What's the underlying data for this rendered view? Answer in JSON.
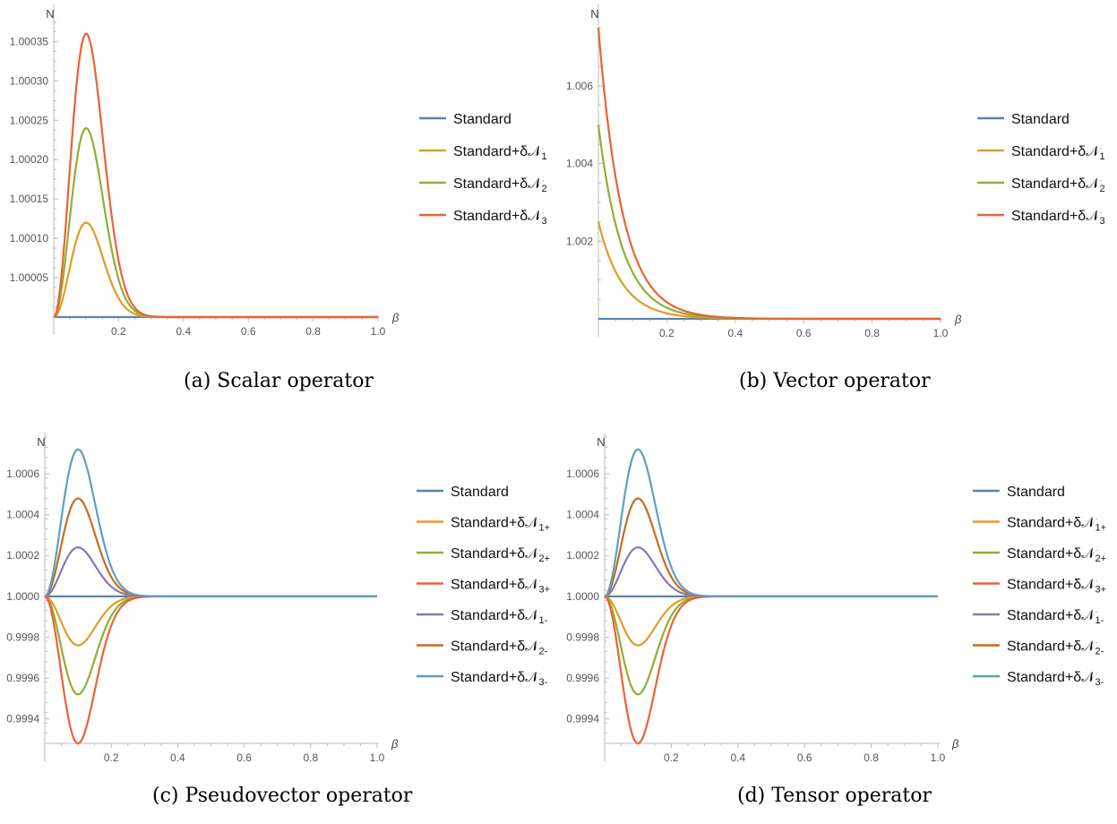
{
  "chart_data": [
    {
      "type": "line",
      "caption": "(a) Scalar operator",
      "ylabel": "N",
      "xlabel": "β",
      "xlim": [
        0,
        1.0
      ],
      "ylim": [
        1.0,
        1.00038
      ],
      "xticks": [
        0.2,
        0.4,
        0.6,
        0.8,
        1.0
      ],
      "xtick_labels": [
        "0.2",
        "0.4",
        "0.6",
        "0.8",
        "1.0"
      ],
      "yticks": [
        1.00005,
        1.0001,
        1.00015,
        1.0002,
        1.00025,
        1.0003,
        1.00035
      ],
      "ytick_labels": [
        "1.00005",
        "1.00010",
        "1.00015",
        "1.00020",
        "1.00025",
        "1.00030",
        "1.00035"
      ],
      "grid": false,
      "legend_position": "right",
      "series": [
        {
          "label": "Standard",
          "sub": "",
          "color": "#5E81B5",
          "model": "flat",
          "amp": 0
        },
        {
          "label": "Standard+δ𝒩",
          "sub": "1",
          "color": "#E19C24",
          "model": "peak",
          "amp": 0.00012
        },
        {
          "label": "Standard+δ𝒩",
          "sub": "2",
          "color": "#8FB032",
          "model": "peak",
          "amp": 0.00024
        },
        {
          "label": "Standard+δ𝒩",
          "sub": "3",
          "color": "#EB6235",
          "model": "peak",
          "amp": 0.00036
        }
      ]
    },
    {
      "type": "line",
      "caption": "(b) Vector operator",
      "ylabel": "N",
      "xlabel": "β",
      "xlim": [
        0,
        1.0
      ],
      "ylim": [
        1.0,
        1.0078
      ],
      "xticks": [
        0.2,
        0.4,
        0.6,
        0.8,
        1.0
      ],
      "xtick_labels": [
        "0.2",
        "0.4",
        "0.6",
        "0.8",
        "1.0"
      ],
      "yticks": [
        1.002,
        1.004,
        1.006
      ],
      "ytick_labels": [
        "1.002",
        "1.004",
        "1.006"
      ],
      "grid": false,
      "legend_position": "right",
      "series": [
        {
          "label": "Standard",
          "sub": "",
          "color": "#5E81B5",
          "model": "flat",
          "amp": 0
        },
        {
          "label": "Standard+δ𝒩",
          "sub": "1",
          "color": "#E19C24",
          "model": "decay",
          "amp": 0.0025
        },
        {
          "label": "Standard+δ𝒩",
          "sub": "2",
          "color": "#8FB032",
          "model": "decay",
          "amp": 0.005
        },
        {
          "label": "Standard+δ𝒩",
          "sub": "3",
          "color": "#EB6235",
          "model": "decay",
          "amp": 0.0075
        }
      ]
    },
    {
      "type": "line",
      "caption": "(c) Pseudovector operator",
      "ylabel": "N",
      "xlabel": "β",
      "xlim": [
        0,
        1.0
      ],
      "ylim": [
        0.99928,
        1.00078
      ],
      "xticks": [
        0.2,
        0.4,
        0.6,
        0.8,
        1.0
      ],
      "xtick_labels": [
        "0.2",
        "0.4",
        "0.6",
        "0.8",
        "1.0"
      ],
      "yticks": [
        0.9994,
        0.9996,
        0.9998,
        1.0,
        1.0002,
        1.0004,
        1.0006
      ],
      "ytick_labels": [
        "0.9994",
        "0.9996",
        "0.9998",
        "1.0000",
        "1.0002",
        "1.0004",
        "1.0006"
      ],
      "grid": false,
      "legend_position": "right",
      "series": [
        {
          "label": "Standard",
          "sub": "",
          "color": "#5E81B5",
          "model": "flat",
          "amp": 0
        },
        {
          "label": "Standard+δ𝒩",
          "sub": "1+",
          "color": "#E19C24",
          "model": "peak",
          "amp": -0.00024
        },
        {
          "label": "Standard+δ𝒩",
          "sub": "2+",
          "color": "#8FB032",
          "model": "peak",
          "amp": -0.00048
        },
        {
          "label": "Standard+δ𝒩",
          "sub": "3+",
          "color": "#EB6235",
          "model": "peak",
          "amp": -0.00072
        },
        {
          "label": "Standard+δ𝒩",
          "sub": "1-",
          "color": "#8778B3",
          "model": "peak",
          "amp": 0.00024
        },
        {
          "label": "Standard+δ𝒩",
          "sub": "2-",
          "color": "#C56E1A",
          "model": "peak",
          "amp": 0.00048
        },
        {
          "label": "Standard+δ𝒩",
          "sub": "3-",
          "color": "#5D9EC7",
          "model": "peak",
          "amp": 0.00072
        }
      ]
    },
    {
      "type": "line",
      "caption": "(d) Tensor operator",
      "ylabel": "N",
      "xlabel": "β",
      "xlim": [
        0,
        1.0
      ],
      "ylim": [
        0.99928,
        1.00078
      ],
      "xticks": [
        0.2,
        0.4,
        0.6,
        0.8,
        1.0
      ],
      "xtick_labels": [
        "0.2",
        "0.4",
        "0.6",
        "0.8",
        "1.0"
      ],
      "yticks": [
        0.9994,
        0.9996,
        0.9998,
        1.0,
        1.0002,
        1.0004,
        1.0006
      ],
      "ytick_labels": [
        "0.9994",
        "0.9996",
        "0.9998",
        "1.0000",
        "1.0002",
        "1.0004",
        "1.0006"
      ],
      "grid": false,
      "legend_position": "right",
      "series": [
        {
          "label": "Standard",
          "sub": "",
          "color": "#5E81B5",
          "model": "flat",
          "amp": 0
        },
        {
          "label": "Standard+δ𝒩",
          "sub": "1+",
          "color": "#E19C24",
          "model": "peak",
          "amp": -0.00024
        },
        {
          "label": "Standard+δ𝒩",
          "sub": "2+",
          "color": "#8FB032",
          "model": "peak",
          "amp": -0.00048
        },
        {
          "label": "Standard+δ𝒩",
          "sub": "3+",
          "color": "#EB6235",
          "model": "peak",
          "amp": -0.00072
        },
        {
          "label": "Standard+δ𝒩",
          "sub": "1-",
          "color": "#8778B3",
          "model": "peak",
          "amp": 0.00024
        },
        {
          "label": "Standard+δ𝒩",
          "sub": "2-",
          "color": "#C56E1A",
          "model": "peak",
          "amp": 0.00048
        },
        {
          "label": "Standard+δ𝒩",
          "sub": "3-",
          "color": "#5D9EC7",
          "model": "peak",
          "amp": 0.00072
        }
      ]
    }
  ]
}
